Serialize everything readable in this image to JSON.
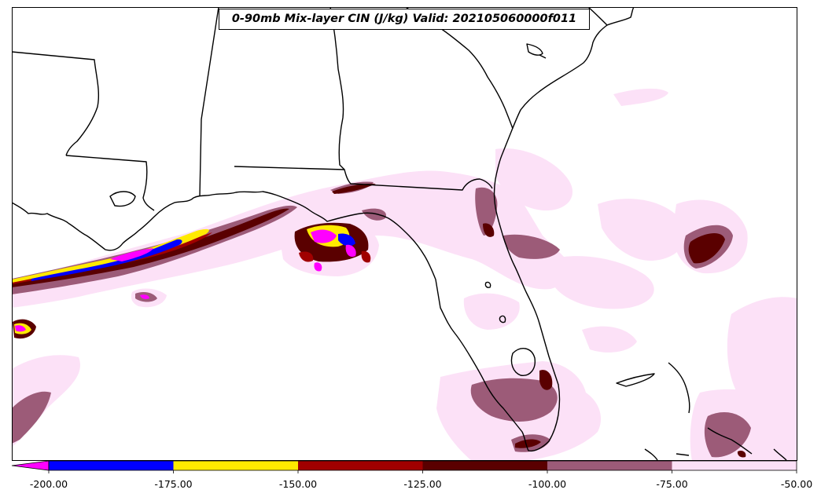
{
  "title": "0-90mb Mix-layer CIN (J/kg) Valid: 202105060000f011",
  "colorbar": {
    "extend": "min",
    "levels": [
      {
        "from": -200,
        "to": -175,
        "color": "#0000ff"
      },
      {
        "from": -175,
        "to": -150,
        "color": "#ffea00"
      },
      {
        "from": -150,
        "to": -125,
        "color": "#a00000"
      },
      {
        "from": -125,
        "to": -100,
        "color": "#5a0000"
      },
      {
        "from": -100,
        "to": -75,
        "color": "#9c5b78"
      },
      {
        "from": -75,
        "to": -50,
        "color": "#fce1f7"
      }
    ],
    "under_color": "#ff00ff",
    "ticks": [
      {
        "value": -200,
        "label": "-200.00"
      },
      {
        "value": -175,
        "label": "-175.00"
      },
      {
        "value": -150,
        "label": "-150.00"
      },
      {
        "value": -125,
        "label": "-125.00"
      },
      {
        "value": -100,
        "label": "-100.00"
      },
      {
        "value": -75,
        "label": "-75.00"
      },
      {
        "value": -50,
        "label": "-50.00"
      }
    ]
  },
  "colors": {
    "lightest": "#fce1f7",
    "mauve": "#9c5b78",
    "dark_red": "#5a0000",
    "red": "#a00000",
    "yellow": "#ffea00",
    "blue": "#0000ff",
    "magenta": "#ff00ff",
    "borders": "#000000"
  }
}
